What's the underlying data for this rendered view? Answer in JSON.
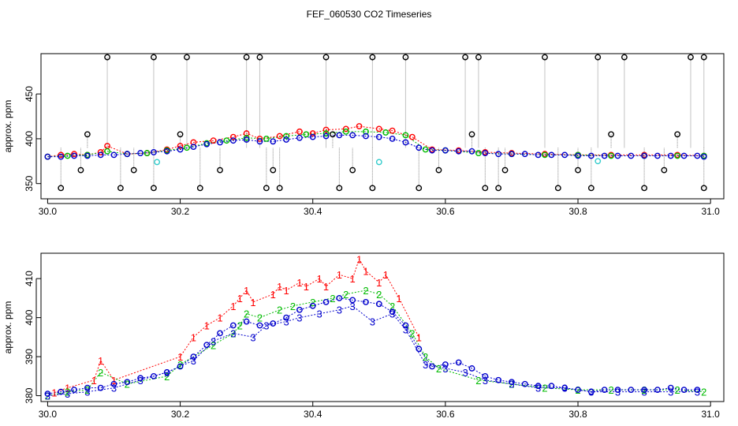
{
  "title": "FEF_060530  CO2 Timeseries",
  "colors": {
    "s1": "#ff0000",
    "s2": "#00bb00",
    "s3": "#0000cc",
    "outlier": "#000000",
    "flag": "#33cccc",
    "drop": "#888888"
  },
  "chart_data": [
    {
      "type": "scatter",
      "ylabel": "approx. ppm",
      "xlim": [
        29.99,
        31.02
      ],
      "ylim": [
        333,
        495
      ],
      "xticks": [
        30.0,
        30.2,
        30.4,
        30.6,
        30.8,
        31.0
      ],
      "xtick_labels": [
        "30.0",
        "30.2",
        "30.4",
        "30.6",
        "30.8",
        "31.0"
      ],
      "yticks": [
        350,
        400,
        450
      ],
      "ytick_labels": [
        "350",
        "400",
        "450"
      ],
      "series": [
        {
          "name": "1",
          "color": "#ff0000",
          "marker": "circle",
          "x": [
            30.0,
            30.02,
            30.04,
            30.06,
            30.08,
            30.09,
            30.12,
            30.15,
            30.18,
            30.2,
            30.22,
            30.25,
            30.28,
            30.3,
            30.32,
            30.35,
            30.38,
            30.4,
            30.42,
            30.45,
            30.47,
            30.5,
            30.52,
            30.55,
            30.58,
            30.62,
            30.66,
            30.7,
            30.75,
            30.8,
            30.85,
            30.9,
            30.95,
            30.99
          ],
          "values": [
            380,
            382,
            383,
            382,
            385,
            392,
            383,
            384,
            388,
            392,
            396,
            398,
            402,
            406,
            400,
            403,
            408,
            406,
            410,
            411,
            414,
            411,
            409,
            402,
            388,
            387,
            385,
            384,
            383,
            382,
            382,
            382,
            382,
            381
          ]
        },
        {
          "name": "2",
          "color": "#00bb00",
          "marker": "circle",
          "x": [
            30.0,
            30.03,
            30.06,
            30.09,
            30.12,
            30.15,
            30.18,
            30.21,
            30.24,
            30.27,
            30.3,
            30.33,
            30.36,
            30.39,
            30.42,
            30.45,
            30.48,
            30.51,
            30.54,
            30.57,
            30.6,
            30.65,
            30.7,
            30.75,
            30.8,
            30.85,
            30.9,
            30.95,
            30.99
          ],
          "values": [
            380,
            381,
            382,
            386,
            383,
            384,
            387,
            390,
            395,
            398,
            401,
            400,
            403,
            405,
            406,
            408,
            408,
            407,
            404,
            388,
            387,
            384,
            383,
            382,
            382,
            381,
            381,
            381,
            381
          ]
        },
        {
          "name": "3",
          "color": "#0000cc",
          "marker": "circle",
          "x": [
            30.0,
            30.02,
            30.04,
            30.06,
            30.08,
            30.1,
            30.12,
            30.14,
            30.16,
            30.18,
            30.2,
            30.22,
            30.24,
            30.26,
            30.28,
            30.3,
            30.32,
            30.34,
            30.36,
            30.38,
            30.4,
            30.42,
            30.44,
            30.46,
            30.48,
            30.5,
            30.52,
            30.54,
            30.56,
            30.58,
            30.6,
            30.62,
            30.64,
            30.66,
            30.68,
            30.7,
            30.72,
            30.74,
            30.76,
            30.78,
            30.8,
            30.82,
            30.84,
            30.86,
            30.88,
            30.9,
            30.92,
            30.94,
            30.96,
            30.98,
            30.99
          ],
          "values": [
            380,
            380,
            381,
            381,
            382,
            382,
            383,
            384,
            385,
            386,
            388,
            391,
            394,
            396,
            398,
            399,
            397,
            397,
            399,
            401,
            402,
            403,
            404,
            404,
            403,
            402,
            400,
            396,
            390,
            387,
            387,
            386,
            386,
            384,
            383,
            383,
            383,
            382,
            382,
            382,
            381,
            381,
            381,
            381,
            381,
            381,
            381,
            381,
            381,
            381,
            380
          ]
        },
        {
          "name": "outliers",
          "color": "#000000",
          "marker": "circle",
          "x": [
            30.09,
            30.16,
            30.21,
            30.3,
            30.32,
            30.42,
            30.49,
            30.54,
            30.63,
            30.65,
            30.75,
            30.83,
            30.87,
            30.97,
            30.99,
            30.02,
            30.11,
            30.16,
            30.23,
            30.33,
            30.35,
            30.44,
            30.49,
            30.56,
            30.66,
            30.68,
            30.77,
            30.82,
            30.9,
            30.99,
            30.05,
            30.13,
            30.26,
            30.34,
            30.46,
            30.59,
            30.69,
            30.8,
            30.93,
            30.06,
            30.2,
            30.43,
            30.64,
            30.85,
            30.95
          ],
          "values": [
            491,
            491,
            491,
            491,
            491,
            491,
            491,
            491,
            491,
            491,
            491,
            491,
            491,
            491,
            491,
            345,
            345,
            345,
            345,
            345,
            345,
            345,
            345,
            345,
            345,
            345,
            345,
            345,
            345,
            345,
            365,
            365,
            365,
            365,
            365,
            365,
            365,
            365,
            365,
            405,
            405,
            405,
            405,
            405,
            405
          ]
        },
        {
          "name": "flagged",
          "color": "#33cccc",
          "marker": "circle",
          "x": [
            30.165,
            30.5,
            30.83
          ],
          "values": [
            374,
            374,
            375
          ]
        }
      ]
    },
    {
      "type": "scatter",
      "ylabel": "approx. ppm",
      "xlim": [
        29.99,
        31.02
      ],
      "ylim": [
        378.5,
        416.5
      ],
      "xticks": [
        30.0,
        30.2,
        30.4,
        30.6,
        30.8,
        31.0
      ],
      "xtick_labels": [
        "30.0",
        "30.2",
        "30.4",
        "30.6",
        "30.8",
        "31.0"
      ],
      "yticks": [
        380,
        390,
        400,
        410
      ],
      "ytick_labels": [
        "380",
        "390",
        "400",
        "410"
      ],
      "series": [
        {
          "name": "1",
          "label": "1",
          "color": "#ff0000",
          "marker": "digit",
          "x": [
            30.01,
            30.03,
            30.07,
            30.08,
            30.1,
            30.2,
            30.22,
            30.24,
            30.26,
            30.28,
            30.29,
            30.3,
            30.31,
            30.34,
            30.35,
            30.36,
            30.38,
            30.39,
            30.41,
            30.42,
            30.44,
            30.46,
            30.47,
            30.48,
            30.5,
            30.51,
            30.53,
            30.56
          ],
          "values": [
            380.8,
            382,
            384,
            389,
            384,
            390,
            395,
            398,
            400,
            403,
            405,
            407,
            404,
            406,
            408,
            407,
            409,
            408,
            410,
            408,
            411,
            410,
            415,
            412,
            409,
            411,
            405,
            395
          ]
        },
        {
          "name": "2",
          "label": "2",
          "color": "#00bb00",
          "marker": "digit",
          "x": [
            30.0,
            30.03,
            30.06,
            30.08,
            30.12,
            30.18,
            30.2,
            30.25,
            30.28,
            30.29,
            30.3,
            30.32,
            30.35,
            30.37,
            30.4,
            30.43,
            30.45,
            30.48,
            30.5,
            30.52,
            30.55,
            30.57,
            30.59,
            30.65,
            30.7,
            30.75,
            30.8,
            30.85,
            30.9,
            30.95,
            30.99
          ],
          "values": [
            380,
            381,
            381.5,
            386,
            383,
            385,
            388,
            393,
            396,
            398,
            401,
            400,
            402,
            403,
            404,
            405,
            406,
            407,
            406,
            403,
            396,
            390,
            387,
            384,
            383,
            382,
            381.5,
            381.5,
            381.5,
            381.5,
            381
          ]
        },
        {
          "name": "3",
          "label": "3",
          "color": "#0000cc",
          "marker": "digit",
          "x": [
            30.0,
            30.03,
            30.06,
            30.1,
            30.14,
            30.18,
            30.22,
            30.25,
            30.28,
            30.31,
            30.33,
            30.36,
            30.38,
            30.41,
            30.44,
            30.46,
            30.49,
            30.52,
            30.54,
            30.57,
            30.6,
            30.63,
            30.66,
            30.7,
            30.74,
            30.78,
            30.82,
            30.86,
            30.9,
            30.94,
            30.98
          ],
          "values": [
            380,
            380.5,
            381,
            382,
            384,
            386,
            389,
            394,
            396,
            395,
            398,
            399,
            400,
            401,
            402,
            403,
            399,
            401,
            397,
            388,
            387,
            386,
            384,
            383,
            382,
            382,
            381,
            381,
            381,
            381,
            381
          ]
        },
        {
          "name": "3-circles",
          "color": "#0000cc",
          "marker": "circle",
          "x": [
            30.0,
            30.02,
            30.04,
            30.06,
            30.08,
            30.1,
            30.12,
            30.14,
            30.16,
            30.18,
            30.2,
            30.22,
            30.24,
            30.26,
            30.28,
            30.3,
            30.32,
            30.34,
            30.36,
            30.38,
            30.4,
            30.42,
            30.44,
            30.46,
            30.48,
            30.5,
            30.52,
            30.54,
            30.56,
            30.58,
            30.6,
            30.62,
            30.64,
            30.66,
            30.68,
            30.7,
            30.72,
            30.74,
            30.76,
            30.78,
            30.8,
            30.82,
            30.84,
            30.86,
            30.88,
            30.9,
            30.92,
            30.94,
            30.96,
            30.98
          ],
          "values": [
            380.5,
            381,
            381.5,
            382,
            382,
            383,
            383.5,
            384.5,
            385,
            386,
            387.5,
            390,
            393,
            396,
            398,
            399,
            398,
            398.5,
            400,
            402,
            403,
            404,
            405,
            404.5,
            404,
            403.5,
            401.5,
            398,
            392,
            387.5,
            388,
            388.5,
            387,
            385,
            384,
            383.5,
            383,
            382.5,
            382.5,
            382,
            381.5,
            381,
            381.5,
            381.5,
            381.5,
            381.5,
            381.5,
            382,
            381.5,
            381.5
          ]
        }
      ]
    }
  ]
}
